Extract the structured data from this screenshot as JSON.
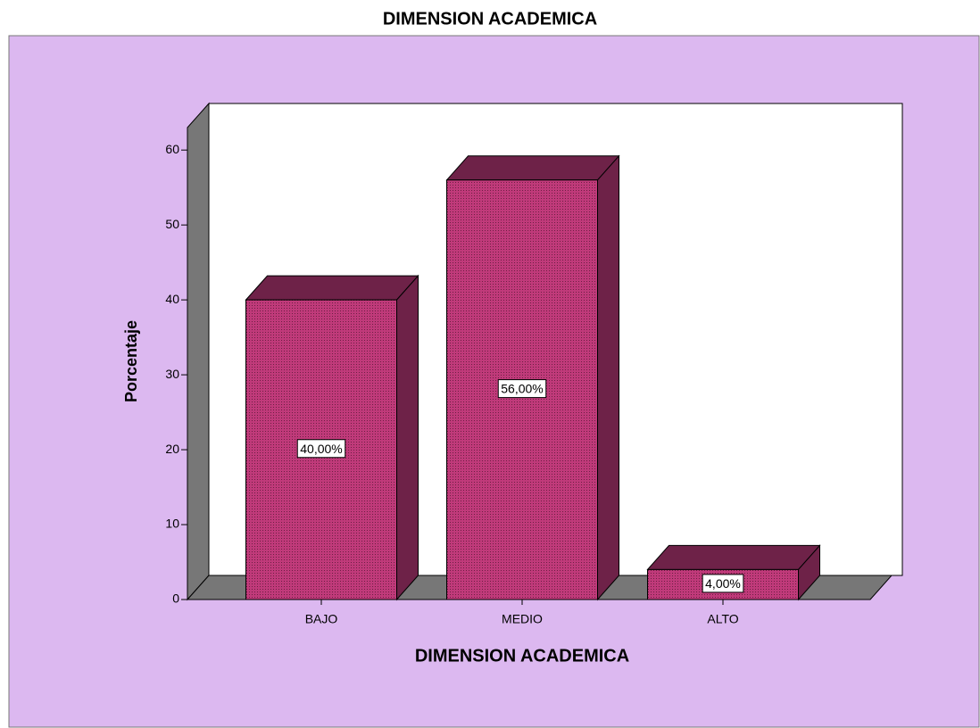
{
  "chart_data": {
    "type": "bar3d",
    "title": "DIMENSION ACADEMICA",
    "xlabel": "DIMENSION ACADEMICA",
    "ylabel": "Porcentaje",
    "categories": [
      "BAJO",
      "MEDIO",
      "ALTO"
    ],
    "values": [
      40,
      56,
      4
    ],
    "value_labels": [
      "40,00%",
      "56,00%",
      "4,00%"
    ],
    "color": "#b3306e",
    "ylim": [
      0,
      63
    ],
    "yticks": [
      0,
      10,
      20,
      30,
      40,
      50,
      60
    ]
  }
}
